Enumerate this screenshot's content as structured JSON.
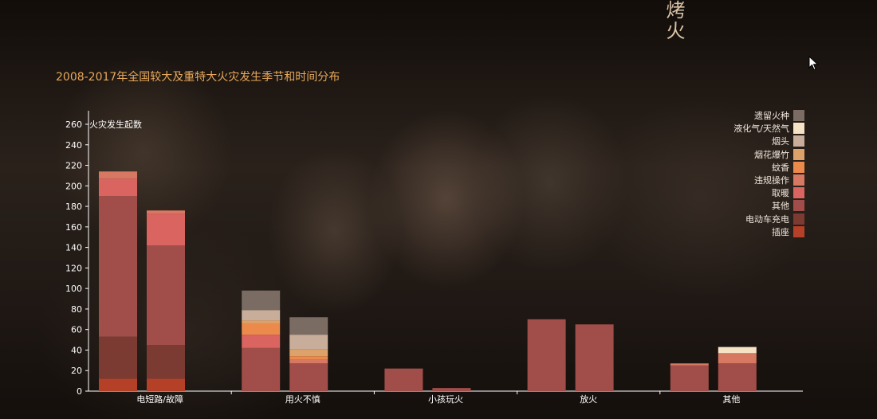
{
  "page": {
    "side_title": "烤火"
  },
  "colors": {
    "遗留火种": "#7a6c62",
    "液化气/天然气": "#f6e2c4",
    "烟头": "#c8ad9a",
    "烟花爆竹": "#dda26a",
    "蚊香": "#ec8a4c",
    "违规操作": "#d77862",
    "取暖": "#d96460",
    "其他": "#a14e4a",
    "电动车充电": "#7b3b33",
    "插座": "#b44127"
  },
  "chart_data": {
    "type": "bar",
    "stacked": true,
    "title": "2008-2017年全国较大及重特大火灾发生季节和时间分布",
    "ylabel": "火灾发生起数",
    "ylim": [
      0,
      270
    ],
    "yticks": [
      0,
      20,
      40,
      60,
      80,
      100,
      120,
      140,
      160,
      180,
      200,
      220,
      240,
      260
    ],
    "categories": [
      "电短路/故障",
      "用火不慎",
      "小孩玩火",
      "放火",
      "其他"
    ],
    "legend_order": [
      "遗留火种",
      "液化气/天然气",
      "烟头",
      "烟花爆竹",
      "蚊香",
      "违规操作",
      "取暖",
      "其他",
      "电动车充电",
      "插座"
    ],
    "legend_position": "top-right",
    "bars": [
      {
        "category": "电短路/故障",
        "segments": [
          [
            "插座",
            12
          ],
          [
            "电动车充电",
            41
          ],
          [
            "其他",
            137
          ],
          [
            "取暖",
            17
          ],
          [
            "违规操作",
            7
          ]
        ]
      },
      {
        "category": "电短路/故障",
        "segments": [
          [
            "插座",
            12
          ],
          [
            "电动车充电",
            33
          ],
          [
            "其他",
            97
          ],
          [
            "取暖",
            31
          ],
          [
            "违规操作",
            3
          ]
        ]
      },
      {
        "category": "用火不慎",
        "segments": [
          [
            "其他",
            42
          ],
          [
            "取暖",
            13
          ],
          [
            "蚊香",
            11
          ],
          [
            "烟花爆竹",
            3
          ],
          [
            "烟头",
            10
          ],
          [
            "遗留火种",
            19
          ]
        ]
      },
      {
        "category": "用火不慎",
        "segments": [
          [
            "其他",
            27
          ],
          [
            "违规操作",
            4
          ],
          [
            "蚊香",
            3
          ],
          [
            "烟花爆竹",
            7
          ],
          [
            "烟头",
            14
          ],
          [
            "遗留火种",
            17
          ]
        ]
      },
      {
        "category": "小孩玩火",
        "segments": [
          [
            "其他",
            22
          ]
        ]
      },
      {
        "category": "小孩玩火",
        "segments": [
          [
            "其他",
            3
          ]
        ]
      },
      {
        "category": "放火",
        "segments": [
          [
            "其他",
            70
          ]
        ]
      },
      {
        "category": "放火",
        "segments": [
          [
            "其他",
            65
          ]
        ]
      },
      {
        "category": "其他",
        "segments": [
          [
            "其他",
            25
          ],
          [
            "违规操作",
            2
          ]
        ]
      },
      {
        "category": "其他",
        "segments": [
          [
            "其他",
            27
          ],
          [
            "违规操作",
            10
          ],
          [
            "液化气/天然气",
            6
          ]
        ]
      }
    ]
  }
}
